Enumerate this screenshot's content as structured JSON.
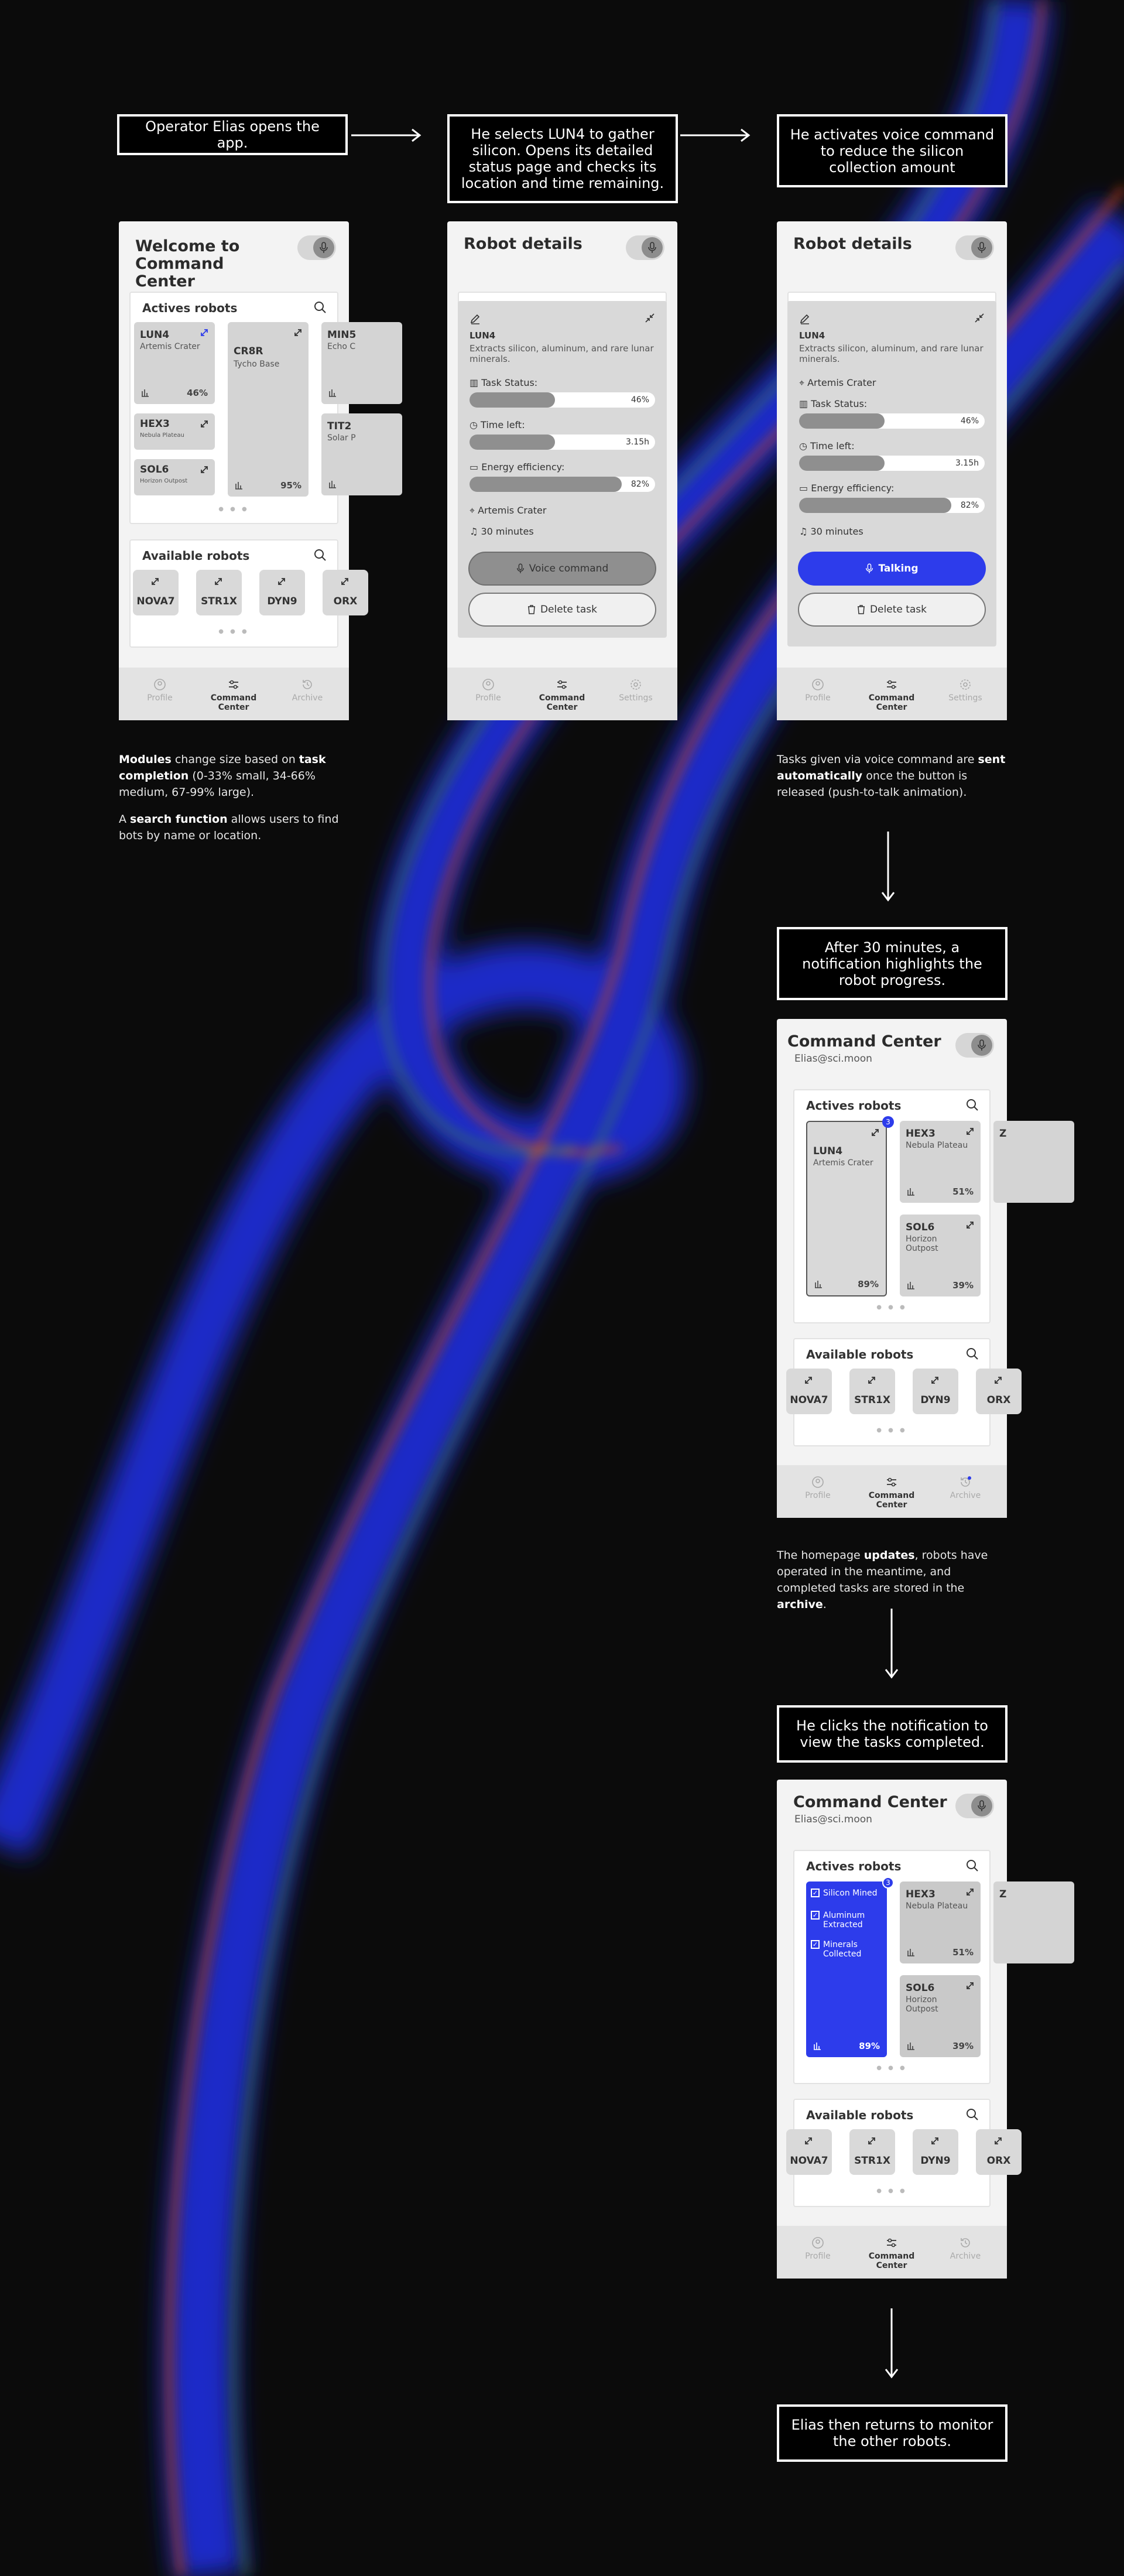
{
  "captions": {
    "c1": "Operator Elias opens the app.",
    "c2": "He selects LUN4 to gather silicon.  Opens its detailed status page and checks its location and time remaining.",
    "c3": "He activates voice command to reduce the silicon collection amount",
    "c4": "After 30 minutes, a notification highlights the robot progress.",
    "c5": "He clicks the notification to view the tasks completed.",
    "c6": "Elias then returns to monitor the other robots."
  },
  "notes": {
    "n1a_1": "Modules",
    "n1a_2": " change size based on ",
    "n1a_3": "task completion",
    "n1a_4": " (0-33% small, 34-66% medium, 67-99% large).",
    "n1b_1": "A ",
    "n1b_2": "search function",
    "n1b_3": " allows users to find bots by name or location.",
    "n2_1": "Tasks given via voice command are ",
    "n2_2": "sent automatically",
    "n2_3": " once the button is released (push-to-talk animation).",
    "n3_1": "The homepage ",
    "n3_2": "updates",
    "n3_3": ", robots have operated in the meantime, and completed tasks are stored in the ",
    "n3_4": "archive",
    "n3_5": "."
  },
  "screen1": {
    "title": "Welcome to Command Center",
    "actives_title": "Actives robots",
    "available_title": "Available robots",
    "robots": [
      {
        "name": "LUN4",
        "loc": "Artemis Crater",
        "pct": "46%"
      },
      {
        "name": "CR8R",
        "loc": "Tycho Base",
        "pct": "95%"
      },
      {
        "name": "MIN5",
        "loc": "Echo C",
        "pct": ""
      },
      {
        "name": "HEX3",
        "loc": "Nebula Plateau",
        "pct": ""
      },
      {
        "name": "SOL6",
        "loc": "Horizon Outpost",
        "pct": ""
      },
      {
        "name": "TIT2",
        "loc": "Solar P",
        "pct": ""
      }
    ],
    "available": [
      "NOVA7",
      "STR1X",
      "DYN9",
      "ORX"
    ]
  },
  "details": {
    "title": "Robot details",
    "name": "LUN4",
    "desc": "Extracts silicon, aluminum, and rare lunar minerals.",
    "location": "Artemis Crater",
    "task_label": "Task Status:",
    "task_val": "46%",
    "task_frac": 0.46,
    "time_label": "Time left:",
    "time_val": "3.15h",
    "time_frac": 0.46,
    "energy_label": "Energy efficiency:",
    "energy_val": "82%",
    "energy_frac": 0.82,
    "duration": "30 minutes",
    "voice": "Voice command",
    "talking": "Talking",
    "delete": "Delete task"
  },
  "tabs": {
    "profile": "Profile",
    "command": "Command Center",
    "archive": "Archive",
    "settings": "Settings"
  },
  "home": {
    "title": "Command Center",
    "email": "Elias@sci.moon",
    "actives_title": "Actives robots",
    "available_title": "Available robots",
    "lun4": {
      "name": "LUN4",
      "loc": "Artemis Crater",
      "pct": "89%"
    },
    "hex3": {
      "name": "HEX3",
      "loc": "Nebula Plateau",
      "pct": "51%"
    },
    "sol6": {
      "name": "SOL6",
      "loc": "Horizon Outpost",
      "pct": "39%"
    },
    "side": "Z",
    "notif": "3",
    "tasks": [
      "Silicon Mined",
      "Aluminum Extracted",
      "Minerals Collected"
    ],
    "available": [
      "NOVA7",
      "STR1X",
      "DYN9",
      "ORX"
    ]
  },
  "colors": {
    "accent": "#2d3ceb"
  }
}
